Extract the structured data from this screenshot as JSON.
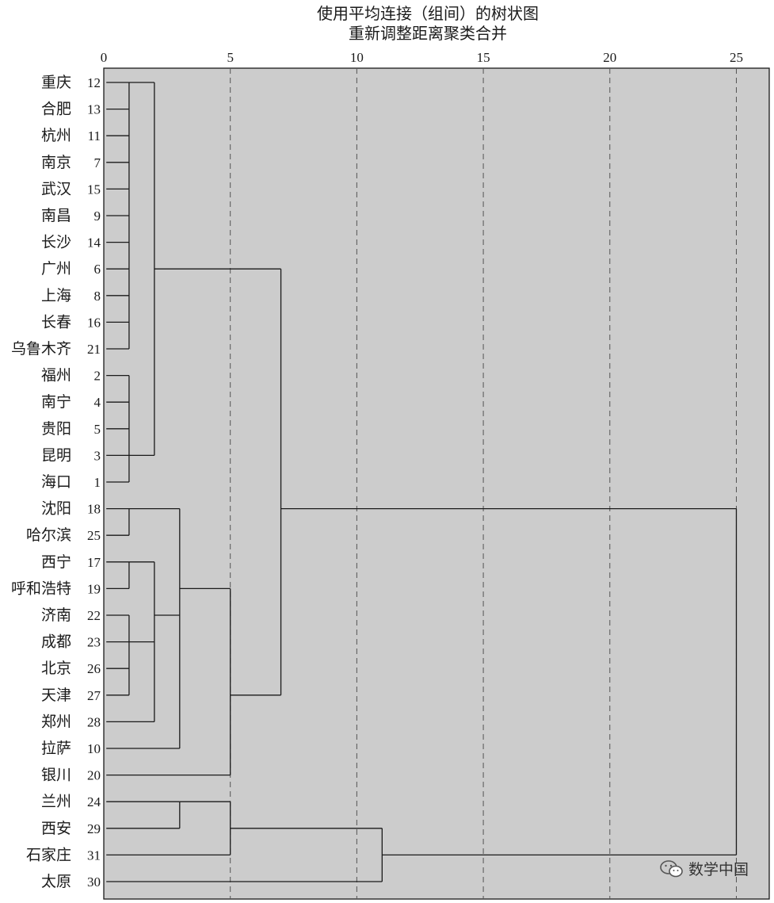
{
  "chart_data": {
    "type": "dendrogram",
    "title": "使用平均连接（组间）的树状图",
    "subtitle": "重新调整距离聚类合并",
    "xlim": [
      0,
      26.3
    ],
    "xticks": [
      0,
      5,
      10,
      15,
      20,
      25
    ],
    "grid": "vertical dashed at ticks",
    "leaves": [
      {
        "label": "重庆",
        "id": "12"
      },
      {
        "label": "合肥",
        "id": "13"
      },
      {
        "label": "杭州",
        "id": "11"
      },
      {
        "label": "南京",
        "id": "7"
      },
      {
        "label": "武汉",
        "id": "15"
      },
      {
        "label": "南昌",
        "id": "9"
      },
      {
        "label": "长沙",
        "id": "14"
      },
      {
        "label": "广州",
        "id": "6"
      },
      {
        "label": "上海",
        "id": "8"
      },
      {
        "label": "长春",
        "id": "16"
      },
      {
        "label": "乌鲁木齐",
        "id": "21"
      },
      {
        "label": "福州",
        "id": "2"
      },
      {
        "label": "南宁",
        "id": "4"
      },
      {
        "label": "贵阳",
        "id": "5"
      },
      {
        "label": "昆明",
        "id": "3"
      },
      {
        "label": "海口",
        "id": "1"
      },
      {
        "label": "沈阳",
        "id": "18"
      },
      {
        "label": "哈尔滨",
        "id": "25"
      },
      {
        "label": "西宁",
        "id": "17"
      },
      {
        "label": "呼和浩特",
        "id": "19"
      },
      {
        "label": "济南",
        "id": "22"
      },
      {
        "label": "成都",
        "id": "23"
      },
      {
        "label": "北京",
        "id": "26"
      },
      {
        "label": "天津",
        "id": "27"
      },
      {
        "label": "郑州",
        "id": "28"
      },
      {
        "label": "拉萨",
        "id": "10"
      },
      {
        "label": "银川",
        "id": "20"
      },
      {
        "label": "兰州",
        "id": "24"
      },
      {
        "label": "西安",
        "id": "29"
      },
      {
        "label": "石家庄",
        "id": "31"
      },
      {
        "label": "太原",
        "id": "30"
      }
    ],
    "merges": [
      {
        "id": "A",
        "children": [
          0,
          1,
          2,
          3,
          4,
          5,
          6,
          7,
          8,
          9,
          10
        ],
        "dist": 1.0,
        "connect_row": 0
      },
      {
        "id": "B",
        "children": [
          11,
          12,
          13,
          14,
          15
        ],
        "dist": 1.0,
        "connect_row": 14
      },
      {
        "id": "C",
        "children": [
          "A",
          "B"
        ],
        "dist": 2.0,
        "connect_row": 7
      },
      {
        "id": "D",
        "children": [
          16,
          17
        ],
        "dist": 1.0,
        "connect_row": 16
      },
      {
        "id": "E",
        "children": [
          18,
          19
        ],
        "dist": 1.0,
        "connect_row": 18
      },
      {
        "id": "F",
        "children": [
          20,
          21,
          22,
          23
        ],
        "dist": 1.0,
        "connect_row": 21
      },
      {
        "id": "G",
        "children": [
          "E",
          "F",
          24
        ],
        "dist": 2.0,
        "connect_row": 20
      },
      {
        "id": "H",
        "children": [
          "D",
          "G",
          25
        ],
        "dist": 3.0,
        "connect_row": 19
      },
      {
        "id": "I",
        "children": [
          "H",
          26
        ],
        "dist": 5.0,
        "connect_row": 23
      },
      {
        "id": "J",
        "children": [
          "C",
          "I"
        ],
        "dist": 7.0,
        "connect_row": 16
      },
      {
        "id": "K",
        "children": [
          27,
          28
        ],
        "dist": 3.0,
        "connect_row": 27
      },
      {
        "id": "L",
        "children": [
          "K",
          29
        ],
        "dist": 5.0,
        "connect_row": 28
      },
      {
        "id": "M",
        "children": [
          "L",
          30
        ],
        "dist": 11.0,
        "connect_row": 29
      },
      {
        "id": "N",
        "children": [
          "J",
          "M"
        ],
        "dist": 25.0
      }
    ]
  },
  "watermark": {
    "text": "数学中国",
    "icon": "wechat-icon"
  }
}
